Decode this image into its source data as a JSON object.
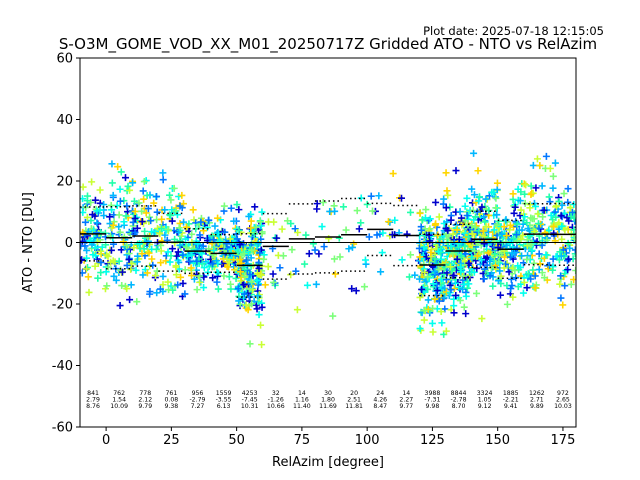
{
  "figure": {
    "plot_date": "Plot date: 2025-07-18 12:15:05"
  },
  "chart_data": {
    "type": "scatter",
    "title": "S-O3M_GOME_VOD_XX_M01_20250717Z Gridded ATO - NTO vs RelAzim",
    "xlabel": "RelAzim [degree]",
    "ylabel": "ATO - NTO [DU]",
    "xlim": [
      -10,
      180
    ],
    "ylim": [
      -60,
      60
    ],
    "xticks": [
      0,
      25,
      50,
      75,
      100,
      125,
      150,
      175
    ],
    "yticks": [
      -60,
      -40,
      -20,
      0,
      20,
      40,
      60
    ],
    "grid": false,
    "legend": "none",
    "marker": "+",
    "colors": {
      "scatter_palette": [
        "#00ffee",
        "#22ffaa",
        "#7cff7a",
        "#c9ff33",
        "#ffd500",
        "#00b7ff",
        "#0077ff",
        "#0000cc"
      ],
      "mean_line": "#000000",
      "zero_line": "#000000"
    },
    "bin_edges": [
      -10,
      0,
      10,
      20,
      30,
      40,
      50,
      60,
      70,
      80,
      90,
      100,
      110,
      120,
      130,
      140,
      150,
      160,
      170,
      180
    ],
    "bins": [
      {
        "center": -5,
        "count": "841",
        "mean": "2.79",
        "std": "8.76"
      },
      {
        "center": 5,
        "count": "762",
        "mean": "1.54",
        "std": "10.09"
      },
      {
        "center": 15,
        "count": "778",
        "mean": "2.12",
        "std": "9.79"
      },
      {
        "center": 25,
        "count": "761",
        "mean": "0.08",
        "std": "9.38"
      },
      {
        "center": 35,
        "count": "956",
        "mean": "-2.79",
        "std": "7.27"
      },
      {
        "center": 45,
        "count": "1559",
        "mean": "-3.55",
        "std": "6.13"
      },
      {
        "center": 55,
        "count": "4253",
        "mean": "-7.45",
        "std": "10.31"
      },
      {
        "center": 65,
        "count": "32",
        "mean": "-1.26",
        "std": "10.66"
      },
      {
        "center": 75,
        "count": "14",
        "mean": "1.16",
        "std": "11.40"
      },
      {
        "center": 85,
        "count": "30",
        "mean": "1.80",
        "std": "11.69"
      },
      {
        "center": 95,
        "count": "20",
        "mean": "2.51",
        "std": "11.81"
      },
      {
        "center": 105,
        "count": "24",
        "mean": "4.26",
        "std": "8.47"
      },
      {
        "center": 115,
        "count": "14",
        "mean": "2.27",
        "std": "9.77"
      },
      {
        "center": 125,
        "count": "3988",
        "mean": "-7.31",
        "std": "9.98"
      },
      {
        "center": 135,
        "count": "8844",
        "mean": "-2.78",
        "std": "8.70"
      },
      {
        "center": 145,
        "count": "3324",
        "mean": "1.05",
        "std": "9.12"
      },
      {
        "center": 155,
        "count": "1885",
        "mean": "-2.21",
        "std": "9.41"
      },
      {
        "center": 165,
        "count": "1262",
        "mean": "2.71",
        "std": "9.89"
      },
      {
        "center": 175,
        "count": "972",
        "mean": "2.65",
        "std": "10.03"
      }
    ]
  }
}
